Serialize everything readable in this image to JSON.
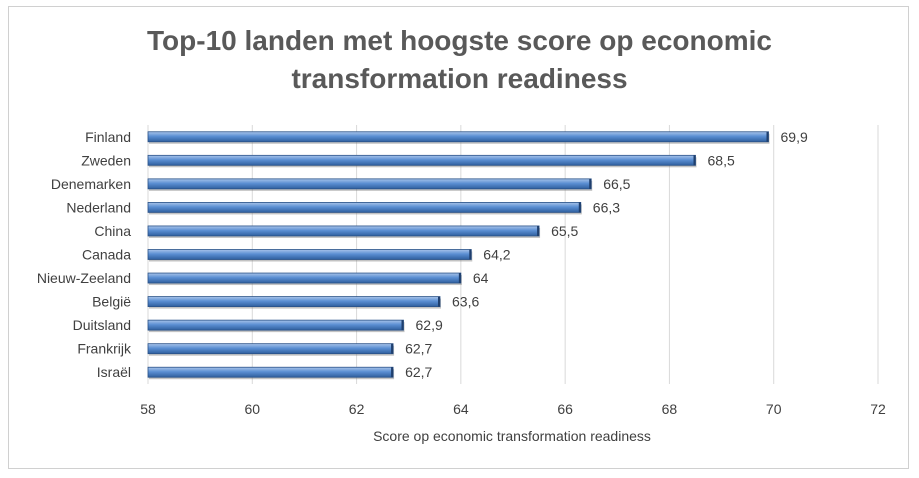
{
  "chart_data": {
    "type": "bar",
    "orientation": "horizontal",
    "title_line1": "Top-10 landen met hoogste score op economic",
    "title_line2": "transformation readiness",
    "xlabel": "Score op economic transformation readiness",
    "ylabel": "",
    "xlim": [
      58,
      72
    ],
    "xticks": [
      58,
      60,
      62,
      64,
      66,
      68,
      70,
      72
    ],
    "grid": true,
    "categories": [
      "Finland",
      "Zweden",
      "Denemarken",
      "Nederland",
      "China",
      "Canada",
      "Nieuw-Zeeland",
      "België",
      "Duitsland",
      "Frankrijk",
      "Israël"
    ],
    "values": [
      69.9,
      68.5,
      66.5,
      66.3,
      65.5,
      64.2,
      64,
      63.6,
      62.9,
      62.7,
      62.7
    ],
    "value_labels": [
      "69,9",
      "68,5",
      "66,5",
      "66,3",
      "65,5",
      "64,2",
      "64",
      "63,6",
      "62,9",
      "62,7",
      "62,7"
    ],
    "colors": {
      "bar_top": "#a9c4ea",
      "bar_mid": "#5b8fd3",
      "bar_bottom": "#2f5f9e",
      "grid": "#d9d9d9",
      "text": "#404040",
      "title": "#595959"
    }
  }
}
